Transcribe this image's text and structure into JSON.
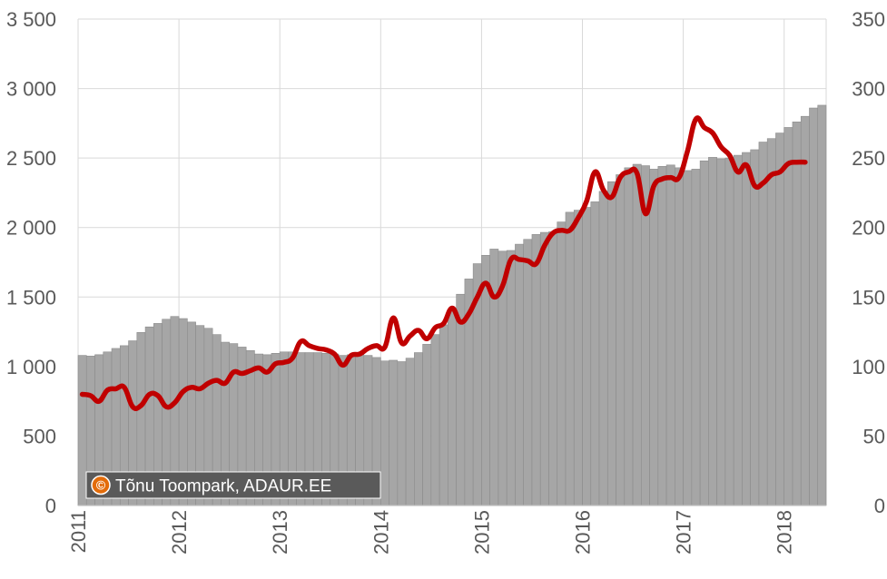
{
  "chart_data": {
    "type": "bar",
    "grid": true,
    "x_tick_labels": [
      "2011",
      "2012",
      "2013",
      "2014",
      "2015",
      "2016",
      "2017",
      "2018"
    ],
    "y_left": {
      "range": [
        0,
        3500
      ],
      "tick_values": [
        0,
        500,
        1000,
        1500,
        2000,
        2500,
        3000,
        3500
      ],
      "tick_labels": [
        "0",
        "500",
        "1 000",
        "1 500",
        "2 000",
        "2 500",
        "3 000",
        "3 500"
      ]
    },
    "y_right": {
      "range": [
        0,
        350
      ],
      "tick_values": [
        0,
        50,
        100,
        150,
        200,
        250,
        300,
        350
      ],
      "tick_labels": [
        "0",
        "50",
        "100",
        "150",
        "200",
        "250",
        "300",
        "350"
      ]
    },
    "series": [
      {
        "type": "bar",
        "axis": "left",
        "color": "#a6a6a6",
        "values": [
          1080,
          1075,
          1085,
          1105,
          1130,
          1150,
          1185,
          1245,
          1285,
          1310,
          1340,
          1360,
          1345,
          1320,
          1295,
          1275,
          1230,
          1175,
          1165,
          1140,
          1115,
          1090,
          1085,
          1095,
          1105,
          1105,
          1100,
          1100,
          1100,
          1095,
          1090,
          1080,
          1085,
          1090,
          1080,
          1065,
          1040,
          1045,
          1035,
          1060,
          1100,
          1160,
          1230,
          1300,
          1400,
          1520,
          1630,
          1740,
          1800,
          1845,
          1830,
          1835,
          1880,
          1915,
          1950,
          1965,
          1970,
          2040,
          2110,
          2125,
          2145,
          2185,
          2260,
          2330,
          2380,
          2430,
          2455,
          2445,
          2420,
          2440,
          2450,
          2430,
          2410,
          2420,
          2480,
          2505,
          2495,
          2500,
          2520,
          2540,
          2560,
          2615,
          2640,
          2680,
          2720,
          2760,
          2800,
          2860,
          2880
        ]
      },
      {
        "type": "line",
        "axis": "right",
        "color": "#c00000",
        "values": [
          80,
          79,
          75,
          83,
          84,
          85,
          71,
          72,
          80,
          79,
          71,
          74,
          82,
          85,
          84,
          88,
          90,
          88,
          96,
          95,
          97,
          99,
          96,
          102,
          103,
          106,
          118,
          115,
          113,
          112,
          109,
          101,
          108,
          109,
          113,
          115,
          114,
          135,
          117,
          122,
          126,
          120,
          128,
          131,
          142,
          132,
          138,
          150,
          160,
          150,
          158,
          177,
          177,
          176,
          174,
          187,
          196,
          198,
          198,
          207,
          219,
          240,
          227,
          222,
          236,
          240,
          239,
          210,
          230,
          235,
          236,
          236,
          255,
          278,
          272,
          268,
          258,
          252,
          240,
          245,
          230,
          232,
          238,
          240,
          246,
          247,
          247
        ]
      }
    ]
  },
  "watermark": {
    "symbol": "©",
    "text": "Tõnu Toompark, ADAUR.EE"
  }
}
